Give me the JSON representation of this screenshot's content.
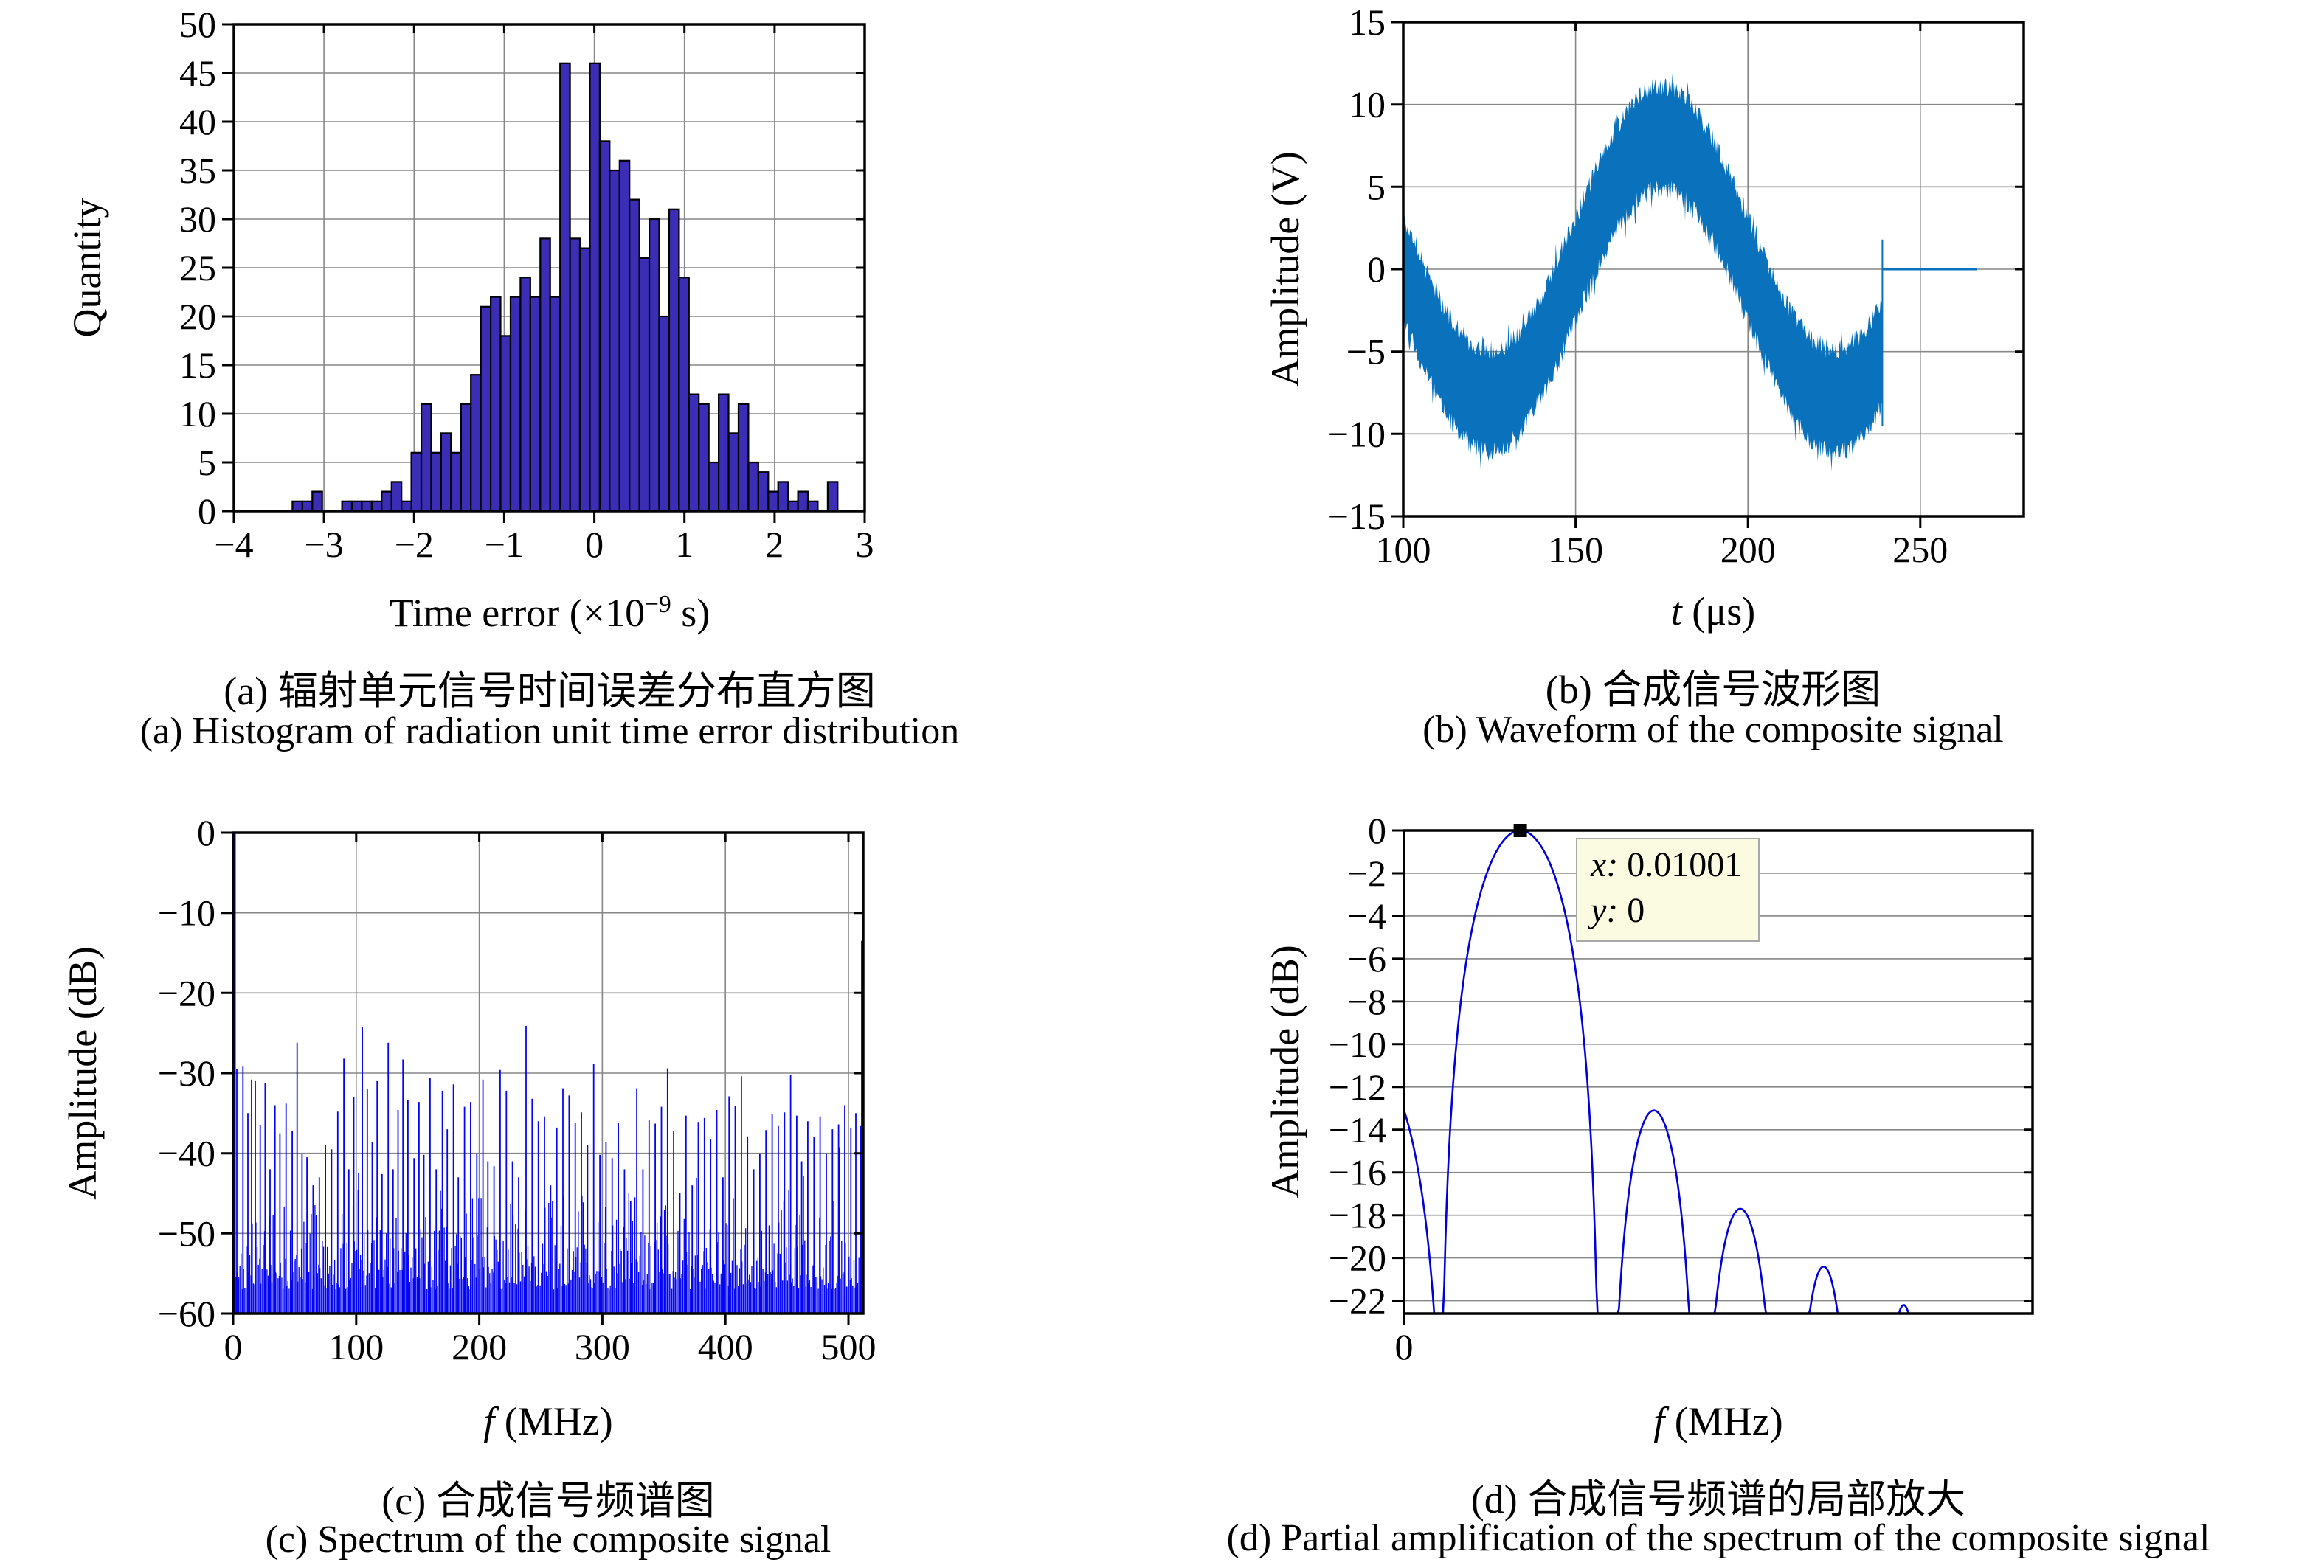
{
  "panels": {
    "a": {
      "ylabel": "Quantity",
      "xlabel_prefix": "Time error (×10",
      "xlabel_sup": "−9",
      "xlabel_suffix": " s)",
      "caption_zh": "(a) 辐射单元信号时间误差分布直方图",
      "caption_en": "(a) Histogram of radiation unit time error distribution"
    },
    "b": {
      "ylabel": "Amplitude (V)",
      "xlabel_var": "t",
      "xlabel_rest": " (μs)",
      "caption_zh": "(b) 合成信号波形图",
      "caption_en": "(b) Waveform of the composite signal"
    },
    "c": {
      "ylabel": "Amplitude (dB)",
      "xlabel_var": "f",
      "xlabel_rest": " (MHz)",
      "caption_zh": "(c) 合成信号频谱图",
      "caption_en": "(c) Spectrum of the composite signal"
    },
    "d": {
      "ylabel": "Amplitude (dB)",
      "xlabel_var": "f",
      "xlabel_rest": " (MHz)",
      "caption_zh": "(d) 合成信号频谱的局部放大",
      "caption_en": "(d) Partial amplification of the spectrum of the composite signal",
      "datatip_line1": "x: 0.01001",
      "datatip_line2": "y: 0"
    }
  },
  "chart_data": [
    {
      "id": "a",
      "type": "bar",
      "title": "(a) Histogram of radiation unit time error distribution",
      "xlabel": "Time error (×10−9 s)",
      "ylabel": "Quantity",
      "xlim": [
        -4,
        3
      ],
      "ylim": [
        0,
        50
      ],
      "xticks": [
        -4,
        -3,
        -2,
        -1,
        0,
        1,
        2,
        3
      ],
      "yticks": [
        0,
        5,
        10,
        15,
        20,
        25,
        30,
        35,
        40,
        45,
        50
      ],
      "grid": true,
      "bin_start": -3.35,
      "bin_width": 0.11,
      "values": [
        1,
        1,
        2,
        0,
        0,
        1,
        1,
        1,
        1,
        2,
        3,
        1,
        6,
        11,
        6,
        8,
        6,
        11,
        14,
        21,
        22,
        18,
        22,
        24,
        22,
        28,
        22,
        46,
        28,
        27,
        46,
        38,
        35,
        36,
        32,
        26,
        30,
        20,
        31,
        24,
        12,
        11,
        5,
        12,
        8,
        11,
        5,
        4,
        2,
        3,
        1,
        2,
        1,
        0,
        3
      ],
      "bar_color": "#3b2db5",
      "bar_edge": "#000000"
    },
    {
      "id": "b",
      "type": "band",
      "title": "(b) Waveform of the composite signal",
      "xlabel": "t (μs)",
      "ylabel": "Amplitude (V)",
      "xlim": [
        100,
        280
      ],
      "ylim": [
        -15,
        15
      ],
      "xticks": [
        100,
        150,
        200,
        250
      ],
      "yticks": [
        -15,
        -10,
        -5,
        0,
        5,
        10,
        15
      ],
      "grid": true,
      "carrier_amp": 8,
      "period_us": 100,
      "peak_t": 175,
      "band_halfwidth": 2.5,
      "jitter": 1.2,
      "seed": 11,
      "t_start": 100,
      "t_end": 239,
      "end_spike": {
        "t": 239,
        "y_min": -9.5,
        "y_max": 1.8
      },
      "zero_line_t_end": 266.5,
      "color": "#0a72bd"
    },
    {
      "id": "c",
      "type": "spectrum",
      "title": "(c) Spectrum of the composite signal",
      "xlabel": "f (MHz)",
      "ylabel": "Amplitude (dB)",
      "xlim": [
        0,
        512
      ],
      "ylim": [
        -60,
        0
      ],
      "xticks": [
        0,
        100,
        200,
        300,
        400,
        500
      ],
      "yticks": [
        -60,
        -50,
        -40,
        -30,
        -20,
        -10,
        0
      ],
      "grid": true,
      "noise": {
        "count": 512,
        "seed": 42,
        "base": -60,
        "floor_top_min": -57,
        "floor_span": 13,
        "spike_prob": 0.07,
        "spike_extra": 8
      },
      "dc_spike_db": 0,
      "edge_spike": {
        "x": 511,
        "db": -13.5
      },
      "peaks": [
        [
          3,
          -29.5
        ],
        [
          8,
          -29.2
        ],
        [
          12,
          -35
        ],
        [
          15,
          -30.8
        ],
        [
          18,
          -31
        ],
        [
          22,
          -36.5
        ],
        [
          26,
          -31.2
        ],
        [
          30,
          -42
        ],
        [
          34,
          -34
        ],
        [
          38,
          -37.5
        ],
        [
          43,
          -33.8
        ],
        [
          48,
          -37.2
        ],
        [
          52,
          -26.2
        ],
        [
          56,
          -40
        ],
        [
          60,
          -40.5
        ],
        [
          65,
          -44
        ],
        [
          70,
          -43
        ],
        [
          75,
          -39
        ],
        [
          80,
          -39.5
        ],
        [
          85,
          -34.8
        ],
        [
          90,
          -28.2
        ],
        [
          94,
          -42
        ],
        [
          98,
          -33
        ],
        [
          102,
          -42.5
        ],
        [
          105,
          -24.2
        ],
        [
          109,
          -32
        ],
        [
          113,
          -38.6
        ],
        [
          117,
          -31
        ],
        [
          121,
          -42.6
        ],
        [
          126,
          -26.2
        ],
        [
          130,
          -42
        ],
        [
          134,
          -34.6
        ],
        [
          138,
          -28.3
        ],
        [
          142,
          -33.4
        ],
        [
          147,
          -40.6
        ],
        [
          151,
          -33.6
        ],
        [
          155,
          -40.2
        ],
        [
          160,
          -30.6
        ],
        [
          165,
          -42
        ],
        [
          170,
          -32.2
        ],
        [
          174,
          -37
        ],
        [
          179,
          -31.4
        ],
        [
          183,
          -43
        ],
        [
          188,
          -34.2
        ],
        [
          193,
          -33.6
        ],
        [
          198,
          -40
        ],
        [
          203,
          -30.8
        ],
        [
          207,
          -41
        ],
        [
          212,
          -41.6
        ],
        [
          217,
          -29.6
        ],
        [
          222,
          -32.2
        ],
        [
          227,
          -41
        ],
        [
          232,
          -43
        ],
        [
          238,
          -24.1
        ],
        [
          243,
          -33.2
        ],
        [
          248,
          -36
        ],
        [
          253,
          -35.4
        ],
        [
          258,
          -44
        ],
        [
          263,
          -36.8
        ],
        [
          268,
          -31.9
        ],
        [
          273,
          -32.8
        ],
        [
          278,
          -36.2
        ],
        [
          283,
          -34.9
        ],
        [
          288,
          -39
        ],
        [
          293,
          -28.9
        ],
        [
          298,
          -40.2
        ],
        [
          303,
          -38.6
        ],
        [
          308,
          -40.6
        ],
        [
          313,
          -36.2
        ],
        [
          318,
          -42
        ],
        [
          323,
          -46
        ],
        [
          328,
          -31.9
        ],
        [
          333,
          -42
        ],
        [
          338,
          -35.9
        ],
        [
          343,
          -36.3
        ],
        [
          348,
          -34.2
        ],
        [
          353,
          -29.4
        ],
        [
          358,
          -37.2
        ],
        [
          363,
          -45
        ],
        [
          368,
          -35.3
        ],
        [
          373,
          -44
        ],
        [
          378,
          -36.1
        ],
        [
          383,
          -35.6
        ],
        [
          388,
          -38.2
        ],
        [
          393,
          -34.6
        ],
        [
          398,
          -43
        ],
        [
          403,
          -32.9
        ],
        [
          408,
          -34.1
        ],
        [
          413,
          -30.4
        ],
        [
          418,
          -37.9
        ],
        [
          423,
          -42
        ],
        [
          428,
          -40
        ],
        [
          433,
          -37.1
        ],
        [
          438,
          -35.1
        ],
        [
          443,
          -36.6
        ],
        [
          448,
          -34.9
        ],
        [
          453,
          -30.2
        ],
        [
          458,
          -35.3
        ],
        [
          462,
          -41
        ],
        [
          467,
          -36
        ],
        [
          472,
          -38
        ],
        [
          477,
          -35.4
        ],
        [
          482,
          -40
        ],
        [
          487,
          -37
        ],
        [
          492,
          -36.4
        ],
        [
          497,
          -34
        ],
        [
          502,
          -36.8
        ],
        [
          506,
          -35
        ],
        [
          510,
          -36.6
        ]
      ],
      "color": "#0505f5"
    },
    {
      "id": "d",
      "type": "lobes",
      "title": "(d) Partial amplification of the spectrum of the composite signal",
      "xlabel": "f (MHz)",
      "ylabel": "Amplitude (dB)",
      "xlim": [
        0,
        1
      ],
      "ylim": [
        -22.6,
        0
      ],
      "xticks": [
        0
      ],
      "yticks": [
        0,
        -2,
        -4,
        -6,
        -8,
        -10,
        -12,
        -14,
        -16,
        -18,
        -20,
        -22
      ],
      "grid": true,
      "lobes": [
        [
          -0.05,
          0.118,
          -11
        ],
        [
          0.185,
          0.128,
          0
        ],
        [
          0.3975,
          0.0715,
          -13.1
        ],
        [
          0.535,
          0.0655,
          -17.7
        ],
        [
          0.6675,
          0.0515,
          -20.4
        ],
        [
          0.795,
          0.04,
          -22.2
        ]
      ],
      "marker": {
        "x": 0.185,
        "y": 0
      },
      "datatip": {
        "x": 0.01001,
        "y": 0
      },
      "color": "#0000dd"
    }
  ]
}
